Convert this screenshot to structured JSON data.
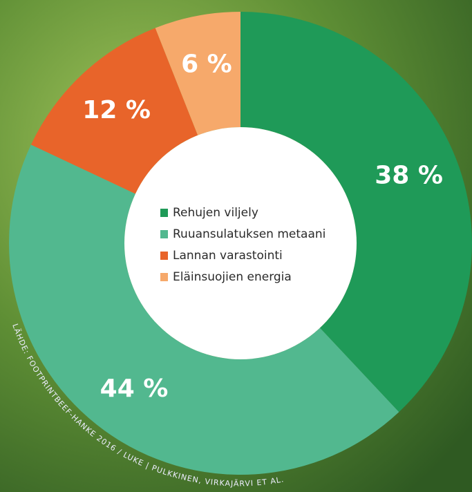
{
  "chart_data": {
    "type": "donut",
    "categories": [
      "Rehujen viljely",
      "Ruuansulatuksen metaani",
      "Lannan varastointi",
      "Eläinsuojien energia"
    ],
    "values": [
      38,
      44,
      12,
      6
    ],
    "value_labels": [
      "38 %",
      "44 %",
      "12 %",
      "6 %"
    ],
    "colors": [
      "#1f9a58",
      "#52b88f",
      "#e8642a",
      "#f6a96b"
    ],
    "source": "LÄHDE: FOOTPRINTBEEF-HANKE 2016 / LUKE | PULKKINEN, VIRKAJÄRVI ET AL."
  }
}
